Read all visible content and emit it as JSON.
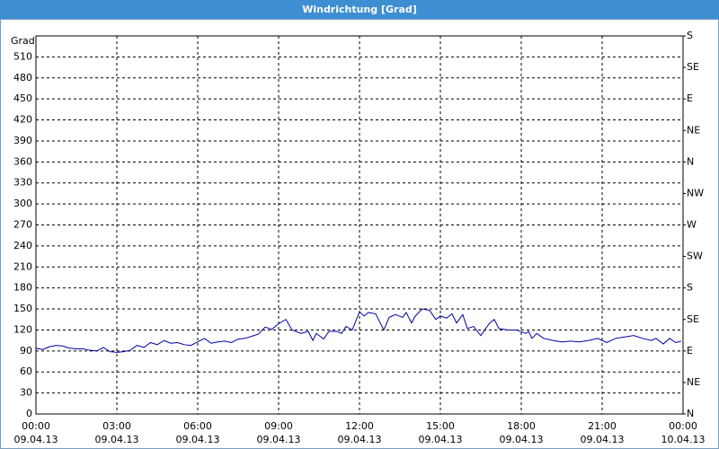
{
  "chart_data": {
    "type": "line",
    "title": "Windrichtung [Grad]",
    "y_label": "Grad",
    "x": [
      0,
      0.25,
      0.5,
      0.75,
      1,
      1.25,
      1.5,
      1.75,
      2,
      2.25,
      2.5,
      2.75,
      3,
      3.25,
      3.5,
      3.75,
      4,
      4.25,
      4.5,
      4.75,
      5,
      5.25,
      5.5,
      5.75,
      6,
      6.25,
      6.5,
      6.75,
      7,
      7.25,
      7.5,
      7.75,
      8,
      8.25,
      8.5,
      8.75,
      9,
      9.27,
      9.5,
      9.83,
      10.1,
      10.27,
      10.4,
      10.67,
      10.87,
      11.17,
      11.33,
      11.5,
      11.73,
      12,
      12.17,
      12.33,
      12.6,
      12.9,
      13.1,
      13.33,
      13.6,
      13.73,
      13.93,
      14.07,
      14.33,
      14.6,
      14.83,
      15,
      15.23,
      15.43,
      15.6,
      15.83,
      16,
      16.23,
      16.5,
      16.83,
      17,
      17.17,
      17.5,
      17.83,
      18.17,
      18.27,
      18.4,
      18.57,
      18.83,
      19.17,
      19.5,
      19.83,
      20.17,
      20.5,
      20.83,
      21.17,
      21.5,
      21.83,
      22.17,
      22.5,
      22.83,
      23,
      23.27,
      23.5,
      23.73,
      23.93
    ],
    "series": [
      {
        "name": "Windrichtung",
        "color": "#0000a0",
        "values": [
          94,
          92,
          96,
          98,
          97,
          94,
          93,
          93,
          91,
          90,
          95,
          89,
          88,
          89,
          91,
          98,
          95,
          102,
          99,
          105,
          101,
          102,
          99,
          98,
          103,
          108,
          101,
          103,
          104,
          102,
          107,
          108,
          111,
          114,
          124,
          121,
          129,
          135,
          120,
          115,
          118,
          105,
          115,
          107,
          118,
          118,
          115,
          125,
          120,
          146,
          140,
          145,
          143,
          120,
          138,
          142,
          138,
          145,
          130,
          140,
          150,
          148,
          135,
          140,
          137,
          143,
          130,
          142,
          122,
          125,
          112,
          130,
          135,
          122,
          120,
          120,
          115,
          118,
          108,
          115,
          108,
          105,
          103,
          104,
          103,
          105,
          108,
          102,
          108,
          110,
          112,
          108,
          105,
          108,
          100,
          108,
          102,
          104
        ]
      }
    ],
    "xlim": [
      0,
      24
    ],
    "xticks": [
      {
        "value": 0,
        "label": "00:00",
        "date": "09.04.13"
      },
      {
        "value": 3,
        "label": "03:00",
        "date": "09.04.13"
      },
      {
        "value": 6,
        "label": "06:00",
        "date": "09.04.13"
      },
      {
        "value": 9,
        "label": "09:00",
        "date": "09.04.13"
      },
      {
        "value": 12,
        "label": "12:00",
        "date": "09.04.13"
      },
      {
        "value": 15,
        "label": "15:00",
        "date": "09.04.13"
      },
      {
        "value": 18,
        "label": "18:00",
        "date": "09.04.13"
      },
      {
        "value": 21,
        "label": "21:00",
        "date": "09.04.13"
      },
      {
        "value": 24,
        "label": "00:00",
        "date": "10.04.13"
      }
    ],
    "ylim": [
      0,
      540
    ],
    "yticks": [
      0,
      30,
      60,
      90,
      120,
      150,
      180,
      210,
      240,
      270,
      300,
      330,
      360,
      390,
      420,
      450,
      480,
      510
    ],
    "y2lim": [
      0,
      540
    ],
    "y2ticks": [
      {
        "value": 0,
        "label": "N"
      },
      {
        "value": 45,
        "label": "NE"
      },
      {
        "value": 90,
        "label": "E"
      },
      {
        "value": 135,
        "label": "SE"
      },
      {
        "value": 180,
        "label": "S"
      },
      {
        "value": 225,
        "label": "SW"
      },
      {
        "value": 270,
        "label": "W"
      },
      {
        "value": 315,
        "label": "NW"
      },
      {
        "value": 360,
        "label": "N"
      },
      {
        "value": 405,
        "label": "NE"
      },
      {
        "value": 450,
        "label": "E"
      },
      {
        "value": 495,
        "label": "SE"
      },
      {
        "value": 540,
        "label": "S"
      }
    ],
    "grid": true
  }
}
